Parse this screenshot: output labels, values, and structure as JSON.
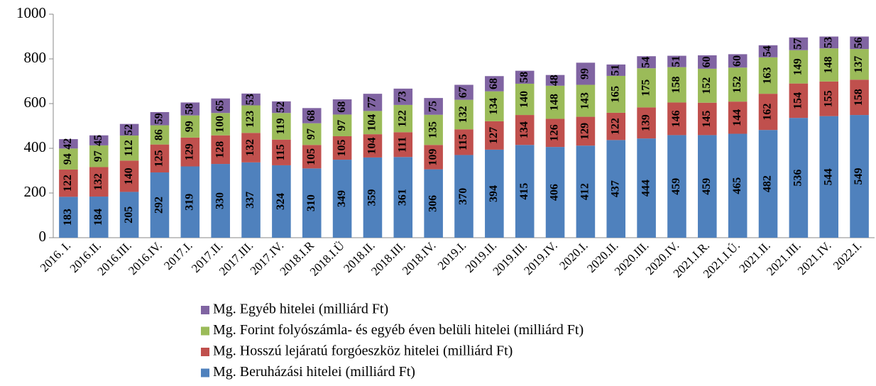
{
  "chart_data": {
    "type": "stacked_bar",
    "categories": [
      "2016. I.",
      "2016.II.",
      "2016.III.",
      "2016.IV.",
      "2017.I.",
      "2017.II.",
      "2017.III.",
      "2017.IV.",
      "2018.I.R",
      "2018.I.Ü",
      "2018.II.",
      "2018.III.",
      "2018.IV.",
      "2019.I.",
      "2019.II.",
      "2019.III.",
      "2019.IV.",
      "2020.I.",
      "2020.II.",
      "2020.III.",
      "2020.IV.",
      "2021.I.R.",
      "2021.I.Ú.",
      "2021.II.",
      "2021.III.",
      "2021.IV.",
      "2022.I."
    ],
    "series": [
      {
        "name": "Mg. Beruházási hitelei (milliárd Ft)",
        "color": "#4f81bd",
        "values": [
          183,
          184,
          205,
          292,
          319,
          330,
          337,
          324,
          310,
          349,
          359,
          361,
          306,
          370,
          394,
          415,
          406,
          412,
          437,
          444,
          459,
          459,
          465,
          482,
          536,
          544,
          549
        ]
      },
      {
        "name": "Mg. Hosszú lejáratú forgóeszköz hitelei (milliárd Ft)",
        "color": "#c0504d",
        "values": [
          122,
          132,
          140,
          125,
          129,
          128,
          132,
          115,
          105,
          105,
          104,
          111,
          109,
          115,
          127,
          134,
          126,
          129,
          122,
          139,
          146,
          145,
          144,
          162,
          154,
          155,
          158
        ]
      },
      {
        "name": "Mg. Forint folyószámla- és egyéb éven belüli hitelei (milliárd Ft)",
        "color": "#9bbb59",
        "values": [
          94,
          97,
          112,
          86,
          99,
          100,
          123,
          119,
          97,
          97,
          104,
          122,
          135,
          132,
          134,
          140,
          148,
          143,
          165,
          175,
          158,
          152,
          152,
          163,
          149,
          148,
          137
        ]
      },
      {
        "name": "Mg. Egyéb hitelei (milliárd Ft)",
        "color": "#8064a2",
        "values": [
          42,
          45,
          52,
          59,
          58,
          65,
          53,
          52,
          68,
          68,
          77,
          73,
          75,
          67,
          68,
          58,
          48,
          99,
          51,
          54,
          51,
          60,
          60,
          54,
          57,
          53,
          56
        ]
      }
    ],
    "ylim": [
      0,
      1000
    ],
    "yticks": [
      0,
      200,
      400,
      600,
      800,
      1000
    ],
    "grid": false
  }
}
